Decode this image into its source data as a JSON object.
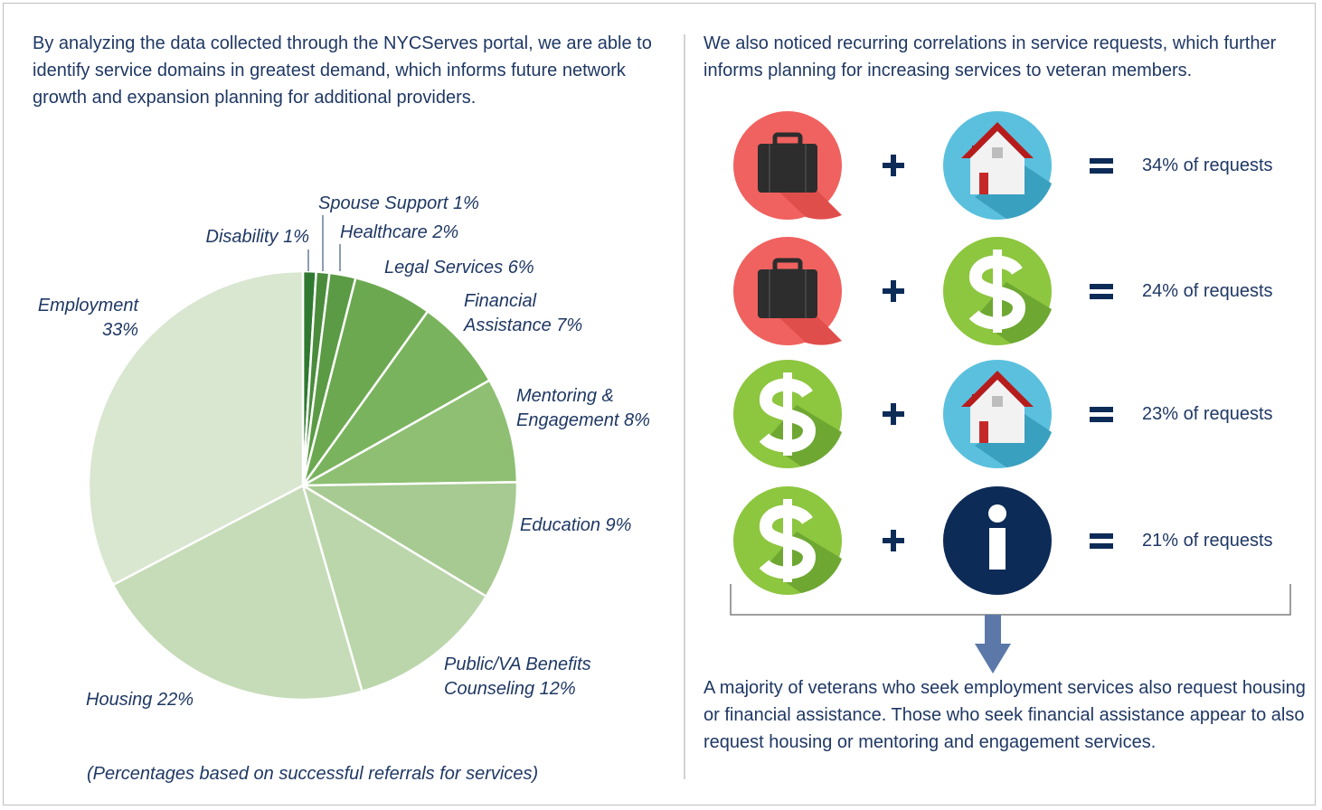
{
  "intro": "By analyzing the data collected through the NYCServes portal, we are able to identify service domains in greatest demand, which informs future network growth and expansion planning for additional providers.",
  "chart_data": {
    "type": "pie",
    "categories": [
      "Disability",
      "Spouse Support",
      "Healthcare",
      "Legal Services",
      "Financial Assistance",
      "Mentoring & Engagement",
      "Education",
      "Public/VA Benefits Counseling",
      "Housing",
      "Employment"
    ],
    "values": [
      1,
      1,
      2,
      6,
      7,
      8,
      9,
      12,
      22,
      33
    ],
    "value_labels": [
      "1%",
      "1%",
      "2%",
      "6%",
      "7%",
      "8%",
      "9%",
      "12%",
      "22%",
      "33%"
    ],
    "colors": [
      "#2f7a30",
      "#4a8c3c",
      "#5c9b45",
      "#6ca850",
      "#7ab35d",
      "#8ebf73",
      "#a6ca91",
      "#bbd6ab",
      "#c6dcb8",
      "#d9e6d0"
    ],
    "footnote": "(Percentages based on successful referrals for services)"
  },
  "right_intro": "We also noticed recurring correlations in service requests, which further informs planning for increasing services to veteran members.",
  "correlations": [
    "34% of requests",
    "24% of requests",
    "23% of requests",
    "21% of requests"
  ],
  "conclusion": "A majority of veterans who seek employment services also request housing or financial assistance. Those who seek financial assistance appear to also request housing or mentoring and engagement services."
}
